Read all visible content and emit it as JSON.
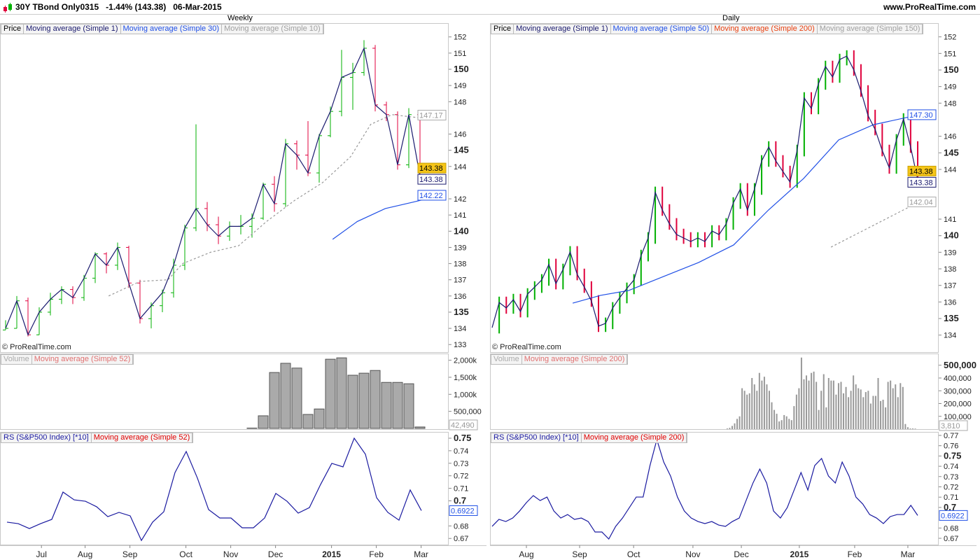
{
  "header": {
    "symbol": "30Y TBond Only0315",
    "change": "-1.44% (143.38)",
    "date": "06-Mar-2015",
    "site": "www.ProRealTime.com"
  },
  "copyright": "© ProRealTime.com",
  "colors": {
    "up": "#00b000",
    "down": "#e0003c",
    "price_line": "#1a1a6e",
    "ma_blue": "#1f4fe6",
    "ma_gray": "#a0a0a0",
    "volume": "#999999",
    "rs": "#1a1aa0",
    "highlight": "#f5c518"
  },
  "weekly": {
    "title": "Weekly",
    "legend": [
      "Price",
      "Moving average (Simple 1)",
      "Moving average (Simple 30)",
      "Moving average (Simple 10)"
    ],
    "volume_legend": [
      "Volume",
      "Moving average (Simple 52)"
    ],
    "rs_legend": [
      "RS (S&P500 Index) [*10]",
      "Moving average (Simple 52)"
    ],
    "x_ticks": [
      {
        "label": "Jul",
        "week": 3.2
      },
      {
        "label": "Aug",
        "week": 7.1
      },
      {
        "label": "Sep",
        "week": 11.1
      },
      {
        "label": "Oct",
        "week": 16.1
      },
      {
        "label": "Nov",
        "week": 20.1
      },
      {
        "label": "Dec",
        "week": 24.1
      },
      {
        "label": "2015",
        "week": 29.1,
        "bold": true
      },
      {
        "label": "Feb",
        "week": 33.1
      },
      {
        "label": "Mar",
        "week": 37.1
      }
    ],
    "price_ticks": [
      {
        "v": 133,
        "l": "133"
      },
      {
        "v": 134,
        "l": "134"
      },
      {
        "v": 135,
        "l": "135",
        "b": true
      },
      {
        "v": 136,
        "l": "136"
      },
      {
        "v": 137,
        "l": "137"
      },
      {
        "v": 138,
        "l": "138"
      },
      {
        "v": 139,
        "l": "139"
      },
      {
        "v": 140,
        "l": "140",
        "b": true
      },
      {
        "v": 141,
        "l": "141"
      },
      {
        "v": 142,
        "l": "142"
      },
      {
        "v": 144,
        "l": "144"
      },
      {
        "v": 145,
        "l": "145",
        "b": true
      },
      {
        "v": 146,
        "l": "146"
      },
      {
        "v": 148,
        "l": "148"
      },
      {
        "v": 149,
        "l": "149"
      },
      {
        "v": 150,
        "l": "150",
        "b": true
      },
      {
        "v": 151,
        "l": "151"
      },
      {
        "v": 152,
        "l": "152"
      }
    ],
    "price_boxes": [
      {
        "v": 147.17,
        "l": "147.17",
        "style": "gray"
      },
      {
        "v": 143.9,
        "l": "143.38",
        "style": "yellow"
      },
      {
        "v": 143.38,
        "l": "143.38",
        "style": "dark"
      },
      {
        "v": 142.22,
        "l": "142.22",
        "style": "blue"
      }
    ],
    "ohlc": [
      [
        133.9,
        134.5,
        133.9,
        134.0
      ],
      [
        134.0,
        136.0,
        134.0,
        135.7
      ],
      [
        135.7,
        135.9,
        133.5,
        133.6
      ],
      [
        133.6,
        135.3,
        133.6,
        135.0
      ],
      [
        135.0,
        136.2,
        134.8,
        135.8
      ],
      [
        135.8,
        136.6,
        135.5,
        136.4
      ],
      [
        136.4,
        136.6,
        135.5,
        135.9
      ],
      [
        135.9,
        137.3,
        135.7,
        137.1
      ],
      [
        137.1,
        138.7,
        136.8,
        138.6
      ],
      [
        138.6,
        138.7,
        137.4,
        137.9
      ],
      [
        137.9,
        139.3,
        137.6,
        139.0
      ],
      [
        139.0,
        139.1,
        136.5,
        136.8
      ],
      [
        136.8,
        137.0,
        134.3,
        134.6
      ],
      [
        134.6,
        135.6,
        134.0,
        135.4
      ],
      [
        135.4,
        136.4,
        135.0,
        136.2
      ],
      [
        136.2,
        138.3,
        135.9,
        137.9
      ],
      [
        137.9,
        140.4,
        137.6,
        140.2
      ],
      [
        140.2,
        146.6,
        140.0,
        141.4
      ],
      [
        141.4,
        141.8,
        140.0,
        140.4
      ],
      [
        140.4,
        140.9,
        139.2,
        139.7
      ],
      [
        139.7,
        140.6,
        139.4,
        140.3
      ],
      [
        140.3,
        141.0,
        139.8,
        140.3
      ],
      [
        140.3,
        141.1,
        139.6,
        140.8
      ],
      [
        140.8,
        143.0,
        140.7,
        142.9
      ],
      [
        142.9,
        143.4,
        141.2,
        141.7
      ],
      [
        141.7,
        145.7,
        141.5,
        145.4
      ],
      [
        145.4,
        145.6,
        143.8,
        144.7
      ],
      [
        144.7,
        146.8,
        143.4,
        143.6
      ],
      [
        143.6,
        146.0,
        143.0,
        145.9
      ],
      [
        145.9,
        147.7,
        145.8,
        147.4
      ],
      [
        147.4,
        151.2,
        147.1,
        149.5
      ],
      [
        149.5,
        150.4,
        147.5,
        149.8
      ],
      [
        149.8,
        151.8,
        149.6,
        151.3
      ],
      [
        151.3,
        151.5,
        147.4,
        147.8
      ],
      [
        147.8,
        148.0,
        146.8,
        147.2
      ],
      [
        147.2,
        147.4,
        143.8,
        144.1
      ],
      [
        144.1,
        147.6,
        143.9,
        147.2
      ],
      [
        147.2,
        147.4,
        143.4,
        143.4
      ]
    ],
    "ma30": [
      [
        29.2,
        139.5
      ],
      [
        31.4,
        140.6
      ],
      [
        33.9,
        141.4
      ],
      [
        36.4,
        141.8
      ],
      [
        38.9,
        142.22
      ]
    ],
    "ma10": [
      [
        9.2,
        136.0
      ],
      [
        12,
        136.9
      ],
      [
        14.5,
        137.0
      ],
      [
        15.8,
        138.0
      ],
      [
        18.3,
        138.7
      ],
      [
        20.8,
        139.1
      ],
      [
        23.3,
        140.6
      ],
      [
        25.8,
        141.9
      ],
      [
        28.3,
        143.0
      ],
      [
        30.8,
        144.6
      ],
      [
        32.6,
        146.6
      ],
      [
        34.5,
        147.2
      ],
      [
        37,
        147.0
      ],
      [
        38.9,
        147.17
      ]
    ],
    "volume_ticks": [
      {
        "v": 2000,
        "l": "2,000k"
      },
      {
        "v": 1500,
        "l": "1,500k"
      },
      {
        "v": 1000,
        "l": "1,000k"
      },
      {
        "v": 500,
        "l": "500,000"
      }
    ],
    "volume_box": "42,490",
    "volume_k": [
      0,
      0,
      0,
      0,
      0,
      0,
      0,
      0,
      0,
      0,
      0,
      0,
      0,
      0,
      0,
      0,
      0,
      0,
      0,
      0,
      0,
      0,
      10,
      370,
      1640,
      1910,
      1770,
      410,
      570,
      2030,
      2070,
      1560,
      1620,
      1700,
      1350,
      1350,
      1310,
      42
    ],
    "rs_ticks": [
      {
        "v": 0.75,
        "l": "0.75",
        "b": true
      },
      {
        "v": 0.74,
        "l": "0.74"
      },
      {
        "v": 0.73,
        "l": "0.73"
      },
      {
        "v": 0.72,
        "l": "0.72"
      },
      {
        "v": 0.71,
        "l": "0.71"
      },
      {
        "v": 0.7,
        "l": "0.7",
        "b": true
      },
      {
        "v": 0.68,
        "l": "0.68"
      },
      {
        "v": 0.67,
        "l": "0.67"
      }
    ],
    "rs_box": "0.6922",
    "rs": [
      0.683,
      0.6818,
      0.6779,
      0.6818,
      0.6852,
      0.707,
      0.7008,
      0.6997,
      0.6953,
      0.6874,
      0.6908,
      0.688,
      0.6684,
      0.683,
      0.6913,
      0.7226,
      0.7394,
      0.7182,
      0.693,
      0.6863,
      0.6863,
      0.6785,
      0.6785,
      0.6863,
      0.7059,
      0.6997,
      0.6902,
      0.6946,
      0.7131,
      0.7299,
      0.7271,
      0.75,
      0.7372,
      0.7025,
      0.6908,
      0.6846,
      0.7087,
      0.6922
    ]
  },
  "daily": {
    "title": "Daily",
    "legend": [
      "Price",
      "Moving average (Simple 1)",
      "Moving average (Simple 50)",
      "Moving average (Simple 200)",
      "Moving average (Simple 150)"
    ],
    "volume_legend": [
      "Volume",
      "Moving average (Simple 200)"
    ],
    "rs_legend": [
      "RS (S&P500 Index) [*10]",
      "Moving average (Simple 200)"
    ],
    "x_ticks": [
      {
        "label": "Aug",
        "day": 12.9
      },
      {
        "label": "Sep",
        "day": 32.9
      },
      {
        "label": "Oct",
        "day": 53.2
      },
      {
        "label": "Nov",
        "day": 75.5
      },
      {
        "label": "Dec",
        "day": 93.7
      },
      {
        "label": "2015",
        "day": 115.5,
        "bold": true
      },
      {
        "label": "Feb",
        "day": 136.3
      },
      {
        "label": "Mar",
        "day": 156.3
      }
    ],
    "price_ticks": [
      {
        "v": 134,
        "l": "134"
      },
      {
        "v": 135,
        "l": "135",
        "b": true
      },
      {
        "v": 136,
        "l": "136"
      },
      {
        "v": 137,
        "l": "137"
      },
      {
        "v": 138,
        "l": "138"
      },
      {
        "v": 139,
        "l": "139"
      },
      {
        "v": 140,
        "l": "140",
        "b": true
      },
      {
        "v": 141,
        "l": "141"
      },
      {
        "v": 144,
        "l": "144"
      },
      {
        "v": 145,
        "l": "145",
        "b": true
      },
      {
        "v": 146,
        "l": "146"
      },
      {
        "v": 148,
        "l": "148"
      },
      {
        "v": 149,
        "l": "149"
      },
      {
        "v": 150,
        "l": "150",
        "b": true
      },
      {
        "v": 151,
        "l": "151"
      },
      {
        "v": 152,
        "l": "152"
      }
    ],
    "price_boxes": [
      {
        "v": 147.3,
        "l": "147.30",
        "style": "blue"
      },
      {
        "v": 143.9,
        "l": "143.38",
        "style": "yellow"
      },
      {
        "v": 143.38,
        "l": "143.38",
        "style": "dark"
      },
      {
        "v": 142.04,
        "l": "142.04",
        "style": "gray"
      }
    ],
    "closes": [
      134.45,
      135.97,
      135.64,
      136.14,
      135.42,
      136.48,
      136.9,
      137.33,
      138.26,
      137.11,
      137.96,
      139.02,
      137.66,
      136.9,
      136.06,
      134.54,
      134.71,
      135.64,
      136.27,
      136.82,
      137.33,
      138.8,
      139.86,
      142.61,
      141.55,
      140.71,
      140.07,
      139.86,
      139.65,
      139.86,
      139.65,
      140.28,
      140.07,
      140.71,
      141.97,
      142.82,
      141.55,
      142.82,
      144.51,
      145.35,
      144.51,
      143.87,
      143.24,
      145.14,
      148.31,
      147.68,
      149.16,
      150.21,
      149.58,
      150.63,
      150.84,
      150.0,
      148.73,
      147.25,
      146.41,
      145.14,
      144.09,
      145.78,
      147.04,
      145.35,
      143.38
    ],
    "ma50": [
      [
        30.3,
        135.93
      ],
      [
        40.8,
        136.4
      ],
      [
        51.3,
        136.69
      ],
      [
        64.5,
        137.54
      ],
      [
        77.6,
        138.38
      ],
      [
        90.8,
        139.44
      ],
      [
        103.9,
        141.55
      ],
      [
        117.1,
        143.45
      ],
      [
        130.3,
        145.78
      ],
      [
        143.4,
        146.7
      ],
      [
        159.2,
        147.25
      ]
    ],
    "ma150": [
      [
        127.4,
        139.31
      ],
      [
        159.7,
        141.97
      ]
    ],
    "volume_ticks": [
      {
        "v": 500,
        "l": "500,000",
        "b": true
      },
      {
        "v": 400,
        "l": "400,000"
      },
      {
        "v": 300,
        "l": "300,000"
      },
      {
        "v": 200,
        "l": "200,000"
      },
      {
        "v": 100,
        "l": "100,000"
      }
    ],
    "volume_box": "3,810",
    "volume_start_day": 88.4,
    "volume_k": [
      5,
      10,
      25,
      45,
      80,
      100,
      320,
      300,
      270,
      280,
      400,
      350,
      300,
      440,
      380,
      410,
      350,
      300,
      210,
      150,
      120,
      60,
      70,
      110,
      100,
      80,
      70,
      180,
      270,
      320,
      560,
      390,
      420,
      380,
      440,
      450,
      370,
      150,
      300,
      430,
      170,
      400,
      380,
      380,
      270,
      360,
      370,
      280,
      330,
      250,
      300,
      420,
      350,
      320,
      310,
      250,
      290,
      300,
      200,
      260,
      260,
      400,
      220,
      230,
      170,
      370,
      380,
      320,
      350,
      250,
      360,
      330,
      40,
      15,
      5,
      5,
      4
    ],
    "rs_ticks": [
      {
        "v": 0.77,
        "l": "0.77"
      },
      {
        "v": 0.76,
        "l": "0.76"
      },
      {
        "v": 0.75,
        "l": "0.75",
        "b": true
      },
      {
        "v": 0.74,
        "l": "0.74"
      },
      {
        "v": 0.73,
        "l": "0.73"
      },
      {
        "v": 0.72,
        "l": "0.72"
      },
      {
        "v": 0.71,
        "l": "0.71"
      },
      {
        "v": 0.7,
        "l": "0.7",
        "b": true
      },
      {
        "v": 0.68,
        "l": "0.68"
      },
      {
        "v": 0.67,
        "l": "0.67"
      }
    ],
    "rs_box": "0.6922",
    "rs": [
      0.6816,
      0.6884,
      0.6863,
      0.6897,
      0.6965,
      0.7047,
      0.7115,
      0.7067,
      0.7101,
      0.6965,
      0.6897,
      0.6931,
      0.6884,
      0.6897,
      0.6863,
      0.6761,
      0.6761,
      0.6693,
      0.6816,
      0.6897,
      0.6999,
      0.7101,
      0.7101,
      0.7407,
      0.7659,
      0.7441,
      0.7305,
      0.7101,
      0.6965,
      0.6897,
      0.6863,
      0.6843,
      0.6863,
      0.6829,
      0.6816,
      0.6863,
      0.6897,
      0.7067,
      0.7237,
      0.7373,
      0.7237,
      0.6965,
      0.6897,
      0.6999,
      0.7169,
      0.7339,
      0.7169,
      0.7407,
      0.7476,
      0.7305,
      0.7237,
      0.7441,
      0.7305,
      0.7101,
      0.7033,
      0.6931,
      0.6897,
      0.6843,
      0.6911,
      0.6931,
      0.6931,
      0.702,
      0.6922
    ]
  }
}
